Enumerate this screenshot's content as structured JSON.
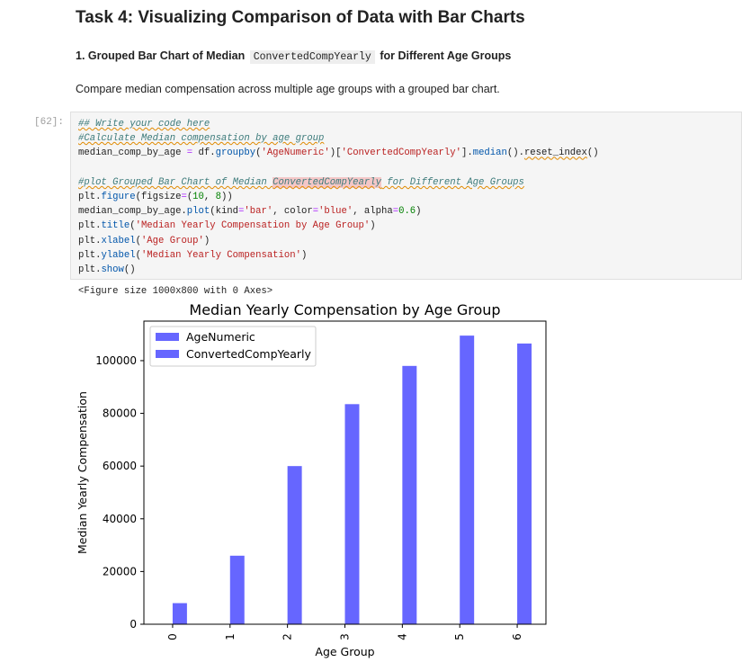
{
  "markdown": {
    "heading": "Task 4: Visualizing Comparison of Data with Bar Charts",
    "subheading_prefix": "1. Grouped Bar Chart of Median",
    "subheading_code": "ConvertedCompYearly",
    "subheading_suffix": "for Different Age Groups",
    "description": "Compare median compensation across multiple age groups with a grouped bar chart."
  },
  "cell": {
    "prompt": "[62]:",
    "code_lines": [
      "## Write your code here",
      "#Calculate Median compensation by age group",
      "median_comp_by_age = df.groupby('AgeNumeric')['ConvertedCompYearly'].median().reset_index()",
      "",
      "#plot Grouped Bar Chart of Median ConvertedCompYearly for Different Age Groups",
      "plt.figure(figsize=(10, 8))",
      "median_comp_by_age.plot(kind='bar', color='blue', alpha=0.6)",
      "plt.title('Median Yearly Compensation by Age Group')",
      "plt.xlabel('Age Group')",
      "plt.ylabel('Median Yearly Compensation')",
      "plt.show()"
    ],
    "output_text": "<Figure size 1000x800 with 0 Axes>"
  },
  "chart_data": {
    "type": "bar",
    "title": "Median Yearly Compensation by Age Group",
    "xlabel": "Age Group",
    "ylabel": "Median Yearly Compensation",
    "categories": [
      "0",
      "1",
      "2",
      "3",
      "4",
      "5",
      "6"
    ],
    "series": [
      {
        "name": "AgeNumeric",
        "values": [
          0,
          1,
          2,
          3,
          4,
          5,
          6
        ]
      },
      {
        "name": "ConvertedCompYearly",
        "values": [
          8000,
          26000,
          60000,
          83500,
          98000,
          109500,
          106500
        ]
      }
    ],
    "ylim": [
      0,
      115000
    ],
    "yticks": [
      0,
      20000,
      40000,
      60000,
      80000,
      100000
    ],
    "legend": "top-left",
    "grid": false,
    "bar_color": "#6666ff"
  }
}
